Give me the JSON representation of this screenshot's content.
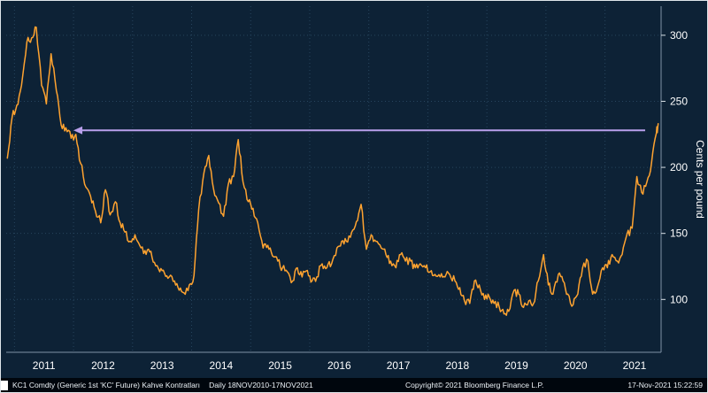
{
  "chart_data": {
    "type": "line",
    "title": "",
    "ylabel": "Cents per pound",
    "xlabel": "",
    "x_ticks": [
      "2011",
      "2012",
      "2013",
      "2014",
      "2015",
      "2016",
      "2017",
      "2018",
      "2019",
      "2020",
      "2021"
    ],
    "y_ticks": [
      100,
      150,
      200,
      250,
      300
    ],
    "xlim": [
      2010.86,
      2021.95
    ],
    "ylim": [
      60,
      322
    ],
    "grid": "dotted",
    "legend": "none",
    "series": [
      {
        "name": "KC1 Comdty (Generic 1st 'KC' Future)",
        "color": "#FFA330",
        "x": [
          2010.88,
          2010.96,
          2011.04,
          2011.12,
          2011.21,
          2011.29,
          2011.37,
          2011.46,
          2011.54,
          2011.62,
          2011.71,
          2011.79,
          2011.87,
          2011.96,
          2012.04,
          2012.12,
          2012.21,
          2012.29,
          2012.37,
          2012.46,
          2012.54,
          2012.62,
          2012.71,
          2012.79,
          2012.87,
          2012.96,
          2013.04,
          2013.12,
          2013.21,
          2013.29,
          2013.37,
          2013.46,
          2013.54,
          2013.62,
          2013.71,
          2013.79,
          2013.87,
          2013.96,
          2014.04,
          2014.12,
          2014.21,
          2014.29,
          2014.37,
          2014.46,
          2014.54,
          2014.62,
          2014.71,
          2014.79,
          2014.87,
          2014.96,
          2015.04,
          2015.12,
          2015.21,
          2015.29,
          2015.37,
          2015.46,
          2015.54,
          2015.62,
          2015.71,
          2015.79,
          2015.87,
          2015.96,
          2016.04,
          2016.12,
          2016.21,
          2016.29,
          2016.37,
          2016.46,
          2016.54,
          2016.62,
          2016.71,
          2016.79,
          2016.87,
          2016.96,
          2017.04,
          2017.12,
          2017.21,
          2017.29,
          2017.37,
          2017.46,
          2017.54,
          2017.62,
          2017.71,
          2017.79,
          2017.87,
          2017.96,
          2018.04,
          2018.12,
          2018.21,
          2018.29,
          2018.37,
          2018.46,
          2018.54,
          2018.62,
          2018.71,
          2018.79,
          2018.87,
          2018.96,
          2019.04,
          2019.12,
          2019.21,
          2019.29,
          2019.37,
          2019.46,
          2019.54,
          2019.62,
          2019.71,
          2019.79,
          2019.87,
          2019.96,
          2020.04,
          2020.12,
          2020.21,
          2020.29,
          2020.37,
          2020.46,
          2020.54,
          2020.62,
          2020.71,
          2020.79,
          2020.87,
          2020.96,
          2021.04,
          2021.12,
          2021.21,
          2021.29,
          2021.37,
          2021.46,
          2021.54,
          2021.62,
          2021.71,
          2021.79,
          2021.87,
          2021.9
        ],
        "y": [
          207,
          238,
          247,
          262,
          295,
          298,
          306,
          262,
          248,
          286,
          258,
          232,
          230,
          222,
          225,
          203,
          185,
          178,
          167,
          158,
          183,
          164,
          174,
          158,
          151,
          144,
          149,
          141,
          137,
          136,
          128,
          121,
          120,
          117,
          114,
          107,
          105,
          111,
          118,
          168,
          196,
          209,
          184,
          173,
          163,
          187,
          193,
          221,
          189,
          174,
          169,
          158,
          139,
          141,
          133,
          129,
          124,
          121,
          114,
          124,
          117,
          122,
          114,
          117,
          127,
          124,
          127,
          139,
          144,
          144,
          151,
          159,
          172,
          138,
          149,
          144,
          139,
          134,
          129,
          124,
          134,
          129,
          129,
          124,
          127,
          124,
          121,
          119,
          117,
          117,
          119,
          114,
          109,
          99,
          97,
          114,
          111,
          100,
          102,
          97,
          94,
          89,
          91,
          107,
          104,
          94,
          99,
          97,
          114,
          134,
          111,
          104,
          119,
          114,
          104,
          96,
          104,
          124,
          129,
          104,
          109,
          124,
          124,
          134,
          129,
          134,
          149,
          154,
          193,
          181,
          189,
          204,
          226,
          233
        ]
      }
    ],
    "annotations": [
      {
        "type": "arrow",
        "direction": "left",
        "y": 228,
        "x_start": 2012.0,
        "x_end": 2021.68,
        "color": "#B9A0EC"
      }
    ]
  },
  "colors": {
    "background": "#0D2236",
    "grid": "#27455E",
    "axis_text": "#FFFFFF",
    "axis_spine": "#7E93A6",
    "tick_mark": "#D9E1E8",
    "line": "#FFA330",
    "arrow": "#B9A0EC",
    "footer_bg": "#00060D"
  },
  "footer": {
    "instrument": "KC1 Comdty (Generic 1st 'KC' Future) Kahve Kontratları",
    "range": "Daily 18NOV2010-17NOV2021",
    "copyright": "Copyright© 2021 Bloomberg Finance L.P.",
    "timestamp": "17-Nov-2021 15:22:59"
  }
}
